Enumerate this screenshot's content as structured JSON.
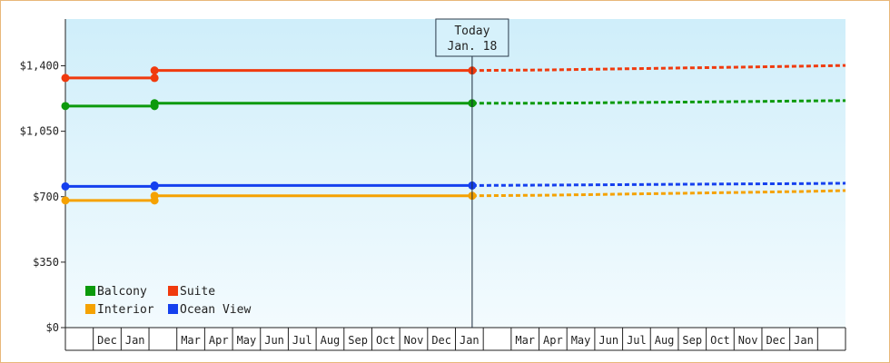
{
  "chart_data": {
    "type": "line",
    "title": "",
    "xlabel": "",
    "ylabel": "",
    "ylim": [
      0,
      1650
    ],
    "y_ticks": [
      {
        "value": 0,
        "label": "$0"
      },
      {
        "value": 350,
        "label": "$350"
      },
      {
        "value": 700,
        "label": "$700"
      },
      {
        "value": 1050,
        "label": "$1,050"
      },
      {
        "value": 1400,
        "label": "$1,400"
      }
    ],
    "x_ticks": [
      "",
      "Dec",
      "Jan",
      "",
      "Mar",
      "Apr",
      "May",
      "Jun",
      "Jul",
      "Aug",
      "Sep",
      "Oct",
      "Nov",
      "Dec",
      "Jan",
      "",
      "Mar",
      "Apr",
      "May",
      "Jun",
      "Jul",
      "Aug",
      "Sep",
      "Oct",
      "Nov",
      "Dec",
      "Jan",
      ""
    ],
    "x_range": [
      0,
      28
    ],
    "today": {
      "line1": "Today",
      "line2": "Jan. 18",
      "x": 14.6
    },
    "grid": false,
    "legend_position": "bottom-left",
    "series": [
      {
        "name": "Suite",
        "color": "#f03a0e",
        "history": [
          [
            0,
            1335
          ],
          [
            3.2,
            1335
          ],
          [
            3.2,
            1375
          ],
          [
            14.6,
            1375
          ]
        ],
        "forecast": [
          [
            14.6,
            1375
          ],
          [
            17.3,
            1378
          ],
          [
            20.5,
            1385
          ],
          [
            23.8,
            1392
          ],
          [
            26.5,
            1398
          ],
          [
            28,
            1402
          ]
        ]
      },
      {
        "name": "Balcony",
        "color": "#0c9a0c",
        "history": [
          [
            0,
            1185
          ],
          [
            3.2,
            1185
          ],
          [
            3.2,
            1200
          ],
          [
            14.6,
            1200
          ]
        ],
        "forecast": [
          [
            14.6,
            1200
          ],
          [
            17.3,
            1200
          ],
          [
            20.5,
            1204
          ],
          [
            23.8,
            1208
          ],
          [
            26.5,
            1212
          ],
          [
            28,
            1214
          ]
        ]
      },
      {
        "name": "Ocean View",
        "color": "#1540ee",
        "history": [
          [
            0,
            755
          ],
          [
            3.2,
            755
          ],
          [
            3.2,
            760
          ],
          [
            14.6,
            760
          ]
        ],
        "forecast": [
          [
            14.6,
            760
          ],
          [
            17.3,
            762
          ],
          [
            20.5,
            765
          ],
          [
            23.8,
            768
          ],
          [
            26.5,
            770
          ],
          [
            28,
            772
          ]
        ]
      },
      {
        "name": "Interior",
        "color": "#f5a202",
        "history": [
          [
            0,
            680
          ],
          [
            3.2,
            680
          ],
          [
            3.2,
            705
          ],
          [
            14.6,
            705
          ]
        ],
        "forecast": [
          [
            14.6,
            705
          ],
          [
            17.3,
            708
          ],
          [
            20.5,
            715
          ],
          [
            23.8,
            722
          ],
          [
            26.5,
            728
          ],
          [
            28,
            733
          ]
        ]
      }
    ],
    "legend": [
      {
        "name": "Balcony",
        "color": "#0c9a0c"
      },
      {
        "name": "Suite",
        "color": "#f03a0e"
      },
      {
        "name": "Interior",
        "color": "#f5a202"
      },
      {
        "name": "Ocean View",
        "color": "#1540ee"
      }
    ]
  }
}
